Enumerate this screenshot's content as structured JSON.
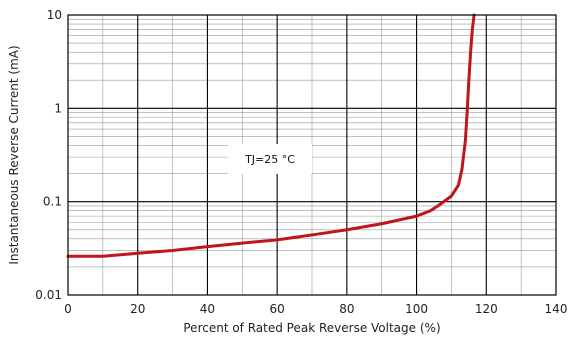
{
  "chart_data": {
    "type": "line",
    "xlabel": "Percent of Rated Peak Reverse Voltage (%)",
    "ylabel": "Instantaneous Reverse Current (mA)",
    "xlim": [
      0,
      140
    ],
    "ylim": [
      0.01,
      10
    ],
    "y_scale": "log",
    "grid": true,
    "x_ticks": [
      "0",
      "20",
      "40",
      "60",
      "80",
      "100",
      "120",
      "140"
    ],
    "y_ticks": [
      "0.01",
      "0.1",
      "1",
      "10"
    ],
    "annotation": "TJ=25 °C",
    "series_color": "#c0151c",
    "series": [
      {
        "x": [
          0,
          10,
          20,
          30,
          40,
          50,
          60,
          70,
          80,
          90,
          100,
          104,
          107,
          110,
          112,
          113,
          114,
          114.5,
          115,
          115.5,
          116,
          116.5
        ],
        "y": [
          0.026,
          0.026,
          0.028,
          0.03,
          0.033,
          0.036,
          0.039,
          0.044,
          0.05,
          0.058,
          0.07,
          0.08,
          0.095,
          0.115,
          0.15,
          0.22,
          0.45,
          0.9,
          2.0,
          4.0,
          7.0,
          10.0
        ]
      }
    ]
  }
}
